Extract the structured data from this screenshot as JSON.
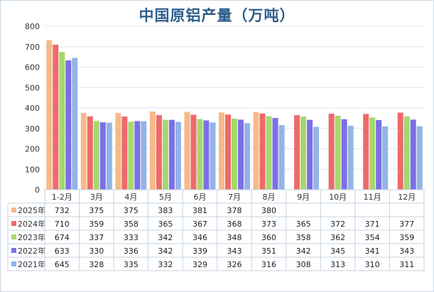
{
  "chart_data": {
    "type": "bar",
    "title": "中国原铝产量（万吨）",
    "categories": [
      "1-2月",
      "3月",
      "4月",
      "5月",
      "6月",
      "7月",
      "8月",
      "9月",
      "10月",
      "11月",
      "12月"
    ],
    "ylim": [
      0,
      800
    ],
    "yticks": [
      0,
      100,
      200,
      300,
      400,
      500,
      600,
      700,
      800
    ],
    "grid": true,
    "legend": "data-table",
    "series": [
      {
        "name": "2025年",
        "color": "#f7b98a",
        "values": [
          732,
          375,
          375,
          383,
          381,
          378,
          380,
          null,
          null,
          null,
          null
        ]
      },
      {
        "name": "2024年",
        "color": "#ee6a6a",
        "values": [
          710,
          359,
          358,
          365,
          367,
          368,
          373,
          365,
          372,
          371,
          377
        ]
      },
      {
        "name": "2023年",
        "color": "#a6d86e",
        "values": [
          674,
          337,
          333,
          342,
          346,
          348,
          360,
          358,
          362,
          354,
          359
        ]
      },
      {
        "name": "2022年",
        "color": "#7b6fe8",
        "values": [
          633,
          330,
          336,
          342,
          339,
          343,
          351,
          342,
          345,
          341,
          343
        ]
      },
      {
        "name": "2021年",
        "color": "#93b4e6",
        "values": [
          645,
          328,
          335,
          332,
          329,
          326,
          316,
          308,
          313,
          310,
          311
        ]
      }
    ]
  }
}
